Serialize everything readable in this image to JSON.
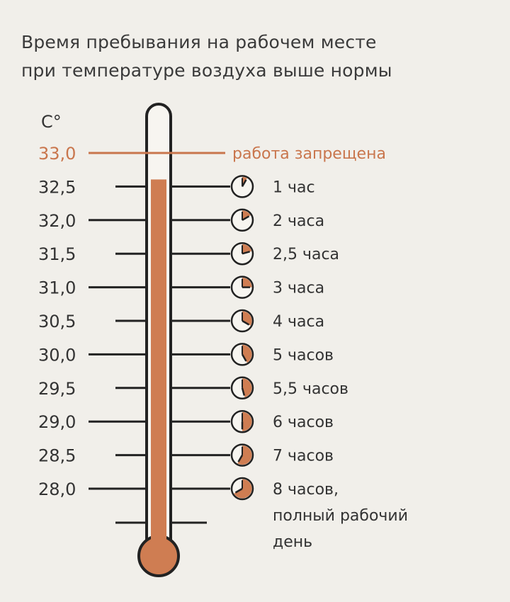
{
  "title": {
    "line1": "Время пребывания на рабочем месте",
    "line2": "при температуре воздуха выше нормы"
  },
  "unit": "C°",
  "colors": {
    "mercury": "#cf7d52",
    "forbidden": "#c9764d",
    "ink": "#222222",
    "background": "#f1efea"
  },
  "rows": [
    {
      "temp": "33,0",
      "label": "работа запрещена",
      "forbidden": true
    },
    {
      "temp": "32,5",
      "label": "1 час",
      "hours": 1
    },
    {
      "temp": "32,0",
      "label": "2 часа",
      "hours": 2
    },
    {
      "temp": "31,5",
      "label": "2,5 часа",
      "hours": 2.5
    },
    {
      "temp": "31,0",
      "label": "3 часа",
      "hours": 3
    },
    {
      "temp": "30,5",
      "label": "4 часа",
      "hours": 4
    },
    {
      "temp": "30,0",
      "label": "5 часов",
      "hours": 5
    },
    {
      "temp": "29,5",
      "label": "5,5 часов",
      "hours": 5.5
    },
    {
      "temp": "29,0",
      "label": "6 часов",
      "hours": 6
    },
    {
      "temp": "28,5",
      "label": "7 часов",
      "hours": 7
    },
    {
      "temp": "28,0",
      "label": "8 часов,",
      "hours": 8,
      "extra": [
        "полный рабочий",
        "день"
      ]
    }
  ]
}
